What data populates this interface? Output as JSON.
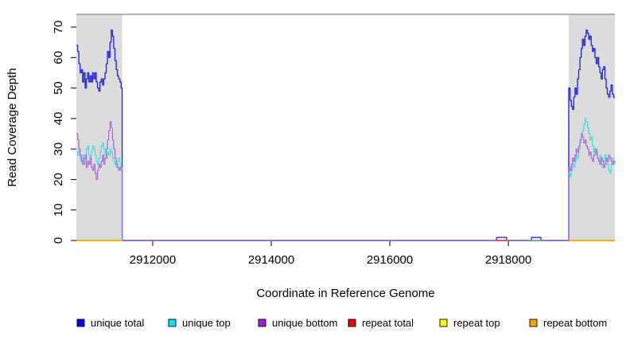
{
  "chart_data": {
    "type": "line",
    "title": "",
    "xlabel": "Coordinate in Reference Genome",
    "ylabel": "Read Coverage Depth",
    "xlim": [
      2910712,
      2919797
    ],
    "ylim": [
      0,
      70
    ],
    "x_ticks": [
      2912000,
      2914000,
      2916000,
      2918000
    ],
    "y_ticks": [
      0,
      10,
      20,
      30,
      40,
      50,
      60,
      70
    ],
    "grid": false,
    "plot_border_top_color": "#999999",
    "axis_color": "#000000",
    "shaded_regions": [
      {
        "name": "repeat-region-left",
        "x0": 2910712,
        "x1": 2911485,
        "color": "#DCDCDC"
      },
      {
        "name": "repeat-region-right",
        "x0": 2919019,
        "x1": 2919797,
        "color": "#DCDCDC"
      }
    ],
    "series": [
      {
        "name": "unique_total",
        "label": "unique total",
        "line_color": "#2C2CD8",
        "width": 1.4,
        "segments": [
          {
            "x_start": 2910712,
            "x_step": 21,
            "values": [
              64,
              62,
              58,
              55,
              56,
              52,
              55,
              50,
              53,
              55,
              52,
              54,
              52,
              55,
              53,
              55,
              52,
              50,
              49,
              52,
              53,
              51,
              53,
              55,
              58,
              62,
              60,
              65,
              69,
              67,
              63,
              59,
              56,
              54,
              53,
              52,
              50
            ]
          },
          {
            "points": [
              [
                2911485,
                0
              ],
              [
                2917800,
                0
              ],
              [
                2917800,
                1
              ],
              [
                2917970,
                1
              ],
              [
                2917970,
                0
              ],
              [
                2918390,
                0
              ],
              [
                2918390,
                1
              ],
              [
                2918550,
                1
              ],
              [
                2918550,
                0
              ],
              [
                2919019,
                0
              ]
            ]
          },
          {
            "x_start": 2919019,
            "x_step": 21,
            "values": [
              50,
              46,
              44,
              43,
              47,
              50,
              48,
              53,
              56,
              60,
              63,
              66,
              64,
              67,
              69,
              68,
              66,
              67,
              64,
              62,
              63,
              60,
              58,
              60,
              57,
              55,
              53,
              56,
              57,
              53,
              50,
              48,
              47,
              49,
              51,
              48,
              47
            ]
          },
          {
            "points": [
              [
                2919797,
                47
              ]
            ]
          }
        ]
      },
      {
        "name": "unique_top",
        "label": "unique top",
        "line_color": "#45DDE0",
        "width": 1.2,
        "segments": [
          {
            "x_start": 2910712,
            "x_step": 21,
            "values": [
              29,
              28,
              30,
              27,
              26,
              28,
              25,
              27,
              30,
              31,
              28,
              26,
              29,
              31,
              30,
              28,
              26,
              25,
              27,
              29,
              31,
              32,
              30,
              28,
              27,
              29,
              28,
              30,
              29,
              27,
              26,
              25,
              24,
              26,
              27,
              25,
              24
            ]
          },
          {
            "points": [
              [
                2911485,
                0
              ],
              [
                2919019,
                0
              ]
            ]
          },
          {
            "x_start": 2919019,
            "x_step": 21,
            "values": [
              22,
              21,
              23,
              25,
              24,
              26,
              28,
              27,
              30,
              32,
              34,
              36,
              38,
              40,
              39,
              37,
              35,
              33,
              34,
              31,
              29,
              28,
              30,
              27,
              26,
              28,
              25,
              24,
              26,
              28,
              27,
              25,
              23,
              22,
              25,
              27,
              26
            ]
          },
          {
            "points": [
              [
                2919797,
                25
              ]
            ]
          }
        ]
      },
      {
        "name": "unique_bottom",
        "label": "unique bottom",
        "line_color": "#AC66DA",
        "width": 1.2,
        "segments": [
          {
            "x_start": 2910712,
            "x_step": 21,
            "values": [
              35,
              33,
              30,
              28,
              26,
              25,
              27,
              28,
              24,
              26,
              25,
              27,
              24,
              23,
              25,
              22,
              20,
              23,
              25,
              24,
              26,
              28,
              25,
              27,
              30,
              33,
              36,
              39,
              37,
              33,
              30,
              27,
              25,
              24,
              23,
              24,
              23
            ]
          },
          {
            "points": [
              [
                2911485,
                0
              ],
              [
                2919019,
                0
              ]
            ]
          },
          {
            "x_start": 2919019,
            "x_step": 21,
            "values": [
              24,
              23,
              25,
              27,
              26,
              28,
              30,
              29,
              31,
              33,
              35,
              34,
              32,
              33,
              31,
              30,
              28,
              29,
              27,
              26,
              28,
              30,
              29,
              27,
              26,
              25,
              27,
              26,
              24,
              25,
              27,
              26,
              28,
              27,
              26,
              25,
              26
            ]
          },
          {
            "points": [
              [
                2919797,
                26
              ]
            ]
          }
        ]
      },
      {
        "name": "repeat_total",
        "label": "repeat total",
        "line_color": "#E94F4F",
        "width": 1.5,
        "segments": [
          {
            "points": [
              [
                2910712,
                0
              ],
              [
                2911485,
                0
              ]
            ]
          },
          {
            "points": [
              [
                2917800,
                0
              ],
              [
                2917970,
                0
              ]
            ]
          },
          {
            "points": [
              [
                2919019,
                0
              ],
              [
                2919797,
                0
              ]
            ]
          }
        ]
      },
      {
        "name": "repeat_top",
        "label": "repeat top",
        "line_color": "#F2E933",
        "width": 1.5,
        "segments": [
          {
            "points": [
              [
                2910712,
                0
              ],
              [
                2911485,
                0
              ]
            ]
          },
          {
            "points": [
              [
                2918390,
                0
              ],
              [
                2918550,
                0
              ]
            ]
          },
          {
            "points": [
              [
                2919019,
                0
              ],
              [
                2919797,
                0
              ]
            ]
          }
        ]
      },
      {
        "name": "repeat_bottom",
        "label": "repeat bottom",
        "line_color": "#FFA500",
        "width": 1.6,
        "segments": [
          {
            "points": [
              [
                2910712,
                0
              ],
              [
                2911485,
                0
              ]
            ]
          },
          {
            "points": [
              [
                2919019,
                0
              ],
              [
                2919797,
                0
              ]
            ]
          }
        ]
      }
    ],
    "baseline_overlays": [
      {
        "name": "middle-zero-line",
        "x0": 2911485,
        "x1": 2919019,
        "color": "#7B68EE",
        "width": 1.6
      },
      {
        "name": "repeat-total-zero-mark",
        "x0": 2917800,
        "x1": 2917970,
        "color": "#E94F4F",
        "width": 1.6
      },
      {
        "name": "repeat-top-zero-mark",
        "x0": 2918390,
        "x1": 2918550,
        "color": "#5FC878",
        "width": 1.6
      }
    ],
    "legend": {
      "position": "bottom",
      "entries": [
        {
          "label": "unique total",
          "color": "#0000EE"
        },
        {
          "label": "unique top",
          "color": "#00E5EE"
        },
        {
          "label": "unique bottom",
          "color": "#A020D0"
        },
        {
          "label": "repeat total",
          "color": "#EE0000"
        },
        {
          "label": "repeat top",
          "color": "#FFFF00"
        },
        {
          "label": "repeat bottom",
          "color": "#FFA500"
        }
      ]
    }
  }
}
